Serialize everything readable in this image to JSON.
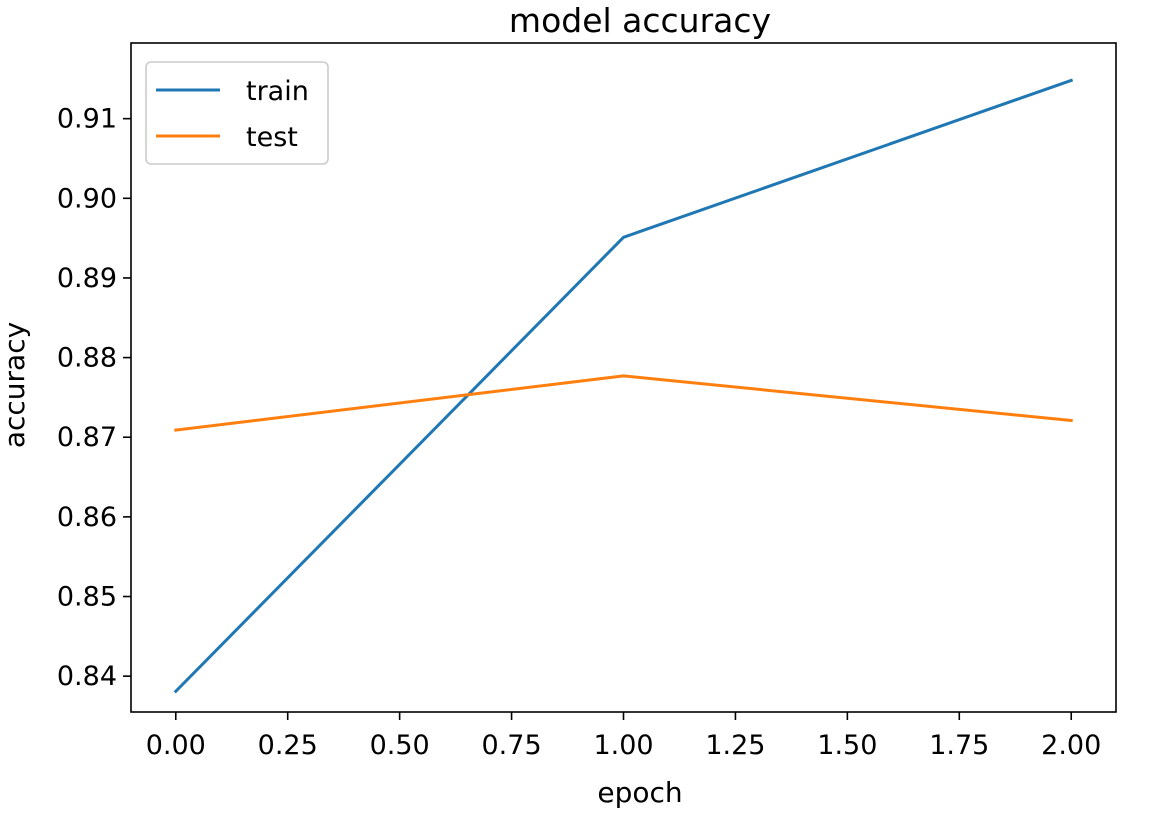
{
  "chart_data": {
    "type": "line",
    "title": "model accuracy",
    "xlabel": "epoch",
    "ylabel": "accuracy",
    "x": [
      0,
      1,
      2
    ],
    "series": [
      {
        "name": "train",
        "values": [
          0.8381,
          0.8951,
          0.9148
        ],
        "color": "#1f77b4"
      },
      {
        "name": "test",
        "values": [
          0.8709,
          0.8777,
          0.8721
        ],
        "color": "#ff7f0e"
      }
    ],
    "xlim": [
      -0.1,
      2.1
    ],
    "ylim": [
      0.8355,
      0.9195
    ],
    "xticks": [
      {
        "value": 0,
        "label": "0.00"
      },
      {
        "value": 0.25,
        "label": "0.25"
      },
      {
        "value": 0.5,
        "label": "0.50"
      },
      {
        "value": 0.75,
        "label": "0.75"
      },
      {
        "value": 1,
        "label": "1.00"
      },
      {
        "value": 1.25,
        "label": "1.25"
      },
      {
        "value": 1.5,
        "label": "1.50"
      },
      {
        "value": 1.75,
        "label": "1.75"
      },
      {
        "value": 2,
        "label": "2.00"
      }
    ],
    "yticks": [
      {
        "value": 0.84,
        "label": "0.84"
      },
      {
        "value": 0.85,
        "label": "0.85"
      },
      {
        "value": 0.86,
        "label": "0.86"
      },
      {
        "value": 0.87,
        "label": "0.87"
      },
      {
        "value": 0.88,
        "label": "0.88"
      },
      {
        "value": 0.89,
        "label": "0.89"
      },
      {
        "value": 0.9,
        "label": "0.90"
      },
      {
        "value": 0.91,
        "label": "0.91"
      }
    ],
    "grid": false,
    "legend_position": "upper-left"
  }
}
